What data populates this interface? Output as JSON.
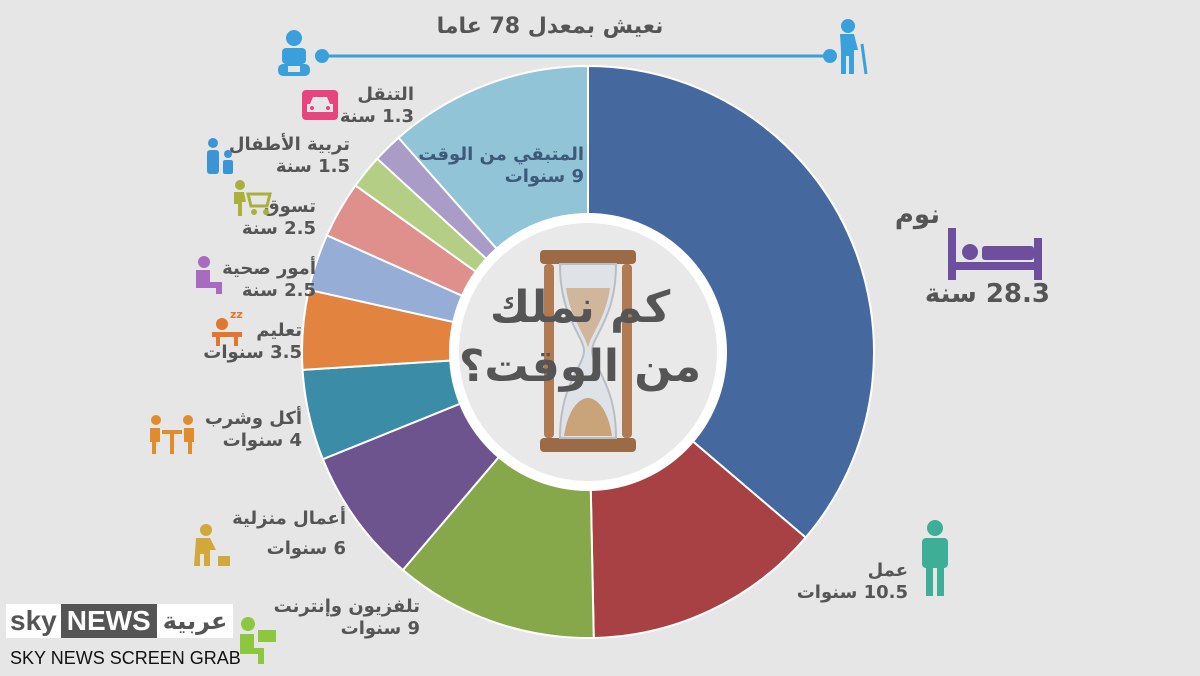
{
  "header": {
    "lifespan_text": "نعيش بمعدل 78 عاما"
  },
  "center": {
    "line1": "كم نملك",
    "line2": "من الوقت؟"
  },
  "logo": {
    "part1": "sky",
    "part2": "NEWS",
    "part3": "عربية"
  },
  "screen_grab": "SKY NEWS SCREEN GRAB",
  "chart_data": {
    "type": "pie",
    "total": 78,
    "slices": [
      {
        "label": "نوم",
        "value_text": "28.3 سنة",
        "value": 28.3,
        "color": "#45699e",
        "icon": "bed-icon"
      },
      {
        "label": "عمل",
        "value_text": "10.5 سنوات",
        "value": 10.5,
        "color": "#a84143",
        "icon": "worker-icon"
      },
      {
        "label": "تلفزيون وإنترنت",
        "value_text": "9 سنوات",
        "value": 9,
        "color": "#86a84b",
        "icon": "computer-user-icon"
      },
      {
        "label": "أعمال منزلية",
        "value_text": "6 سنوات",
        "value": 6,
        "color": "#6e548e",
        "icon": "cleaning-icon"
      },
      {
        "label": "أكل وشرب",
        "value_text": "4 سنوات",
        "value": 4,
        "color": "#3b8da7",
        "icon": "dining-icon"
      },
      {
        "label": "تعليم",
        "value_text": "3.5 سنوات",
        "value": 3.5,
        "color": "#e28440",
        "icon": "student-icon"
      },
      {
        "label": "أمور صحية",
        "value_text": "2.5 سنة",
        "value": 2.5,
        "color": "#96add6",
        "icon": "health-icon"
      },
      {
        "label": "تسوق",
        "value_text": "2.5 سنة",
        "value": 2.5,
        "color": "#df8f8c",
        "icon": "shopping-cart-icon"
      },
      {
        "label": "تربية الأطفال",
        "value_text": "1.5 سنة",
        "value": 1.5,
        "color": "#b4cf85",
        "icon": "parent-child-icon"
      },
      {
        "label": "التنقل",
        "value_text": "1.3 سنة",
        "value": 1.3,
        "color": "#a99cc6",
        "icon": "car-icon"
      },
      {
        "label": "المتبقي من الوقت",
        "value_text": "9 سنوات",
        "value": 9,
        "color": "#92c4d8",
        "icon": ""
      }
    ]
  },
  "colors": {
    "label_text": "#555555",
    "timeline": "#3aa0dc",
    "worker": "#3fae97",
    "bed": "#6d4f9e",
    "car": "#e6457e",
    "parent_child": "#3b95d4",
    "shopping": "#a9b13a",
    "health": "#a86cbf",
    "student": "#e2762e",
    "dining": "#e08c2c",
    "cleaning": "#d1a83b",
    "computer_user": "#8dc63f"
  }
}
